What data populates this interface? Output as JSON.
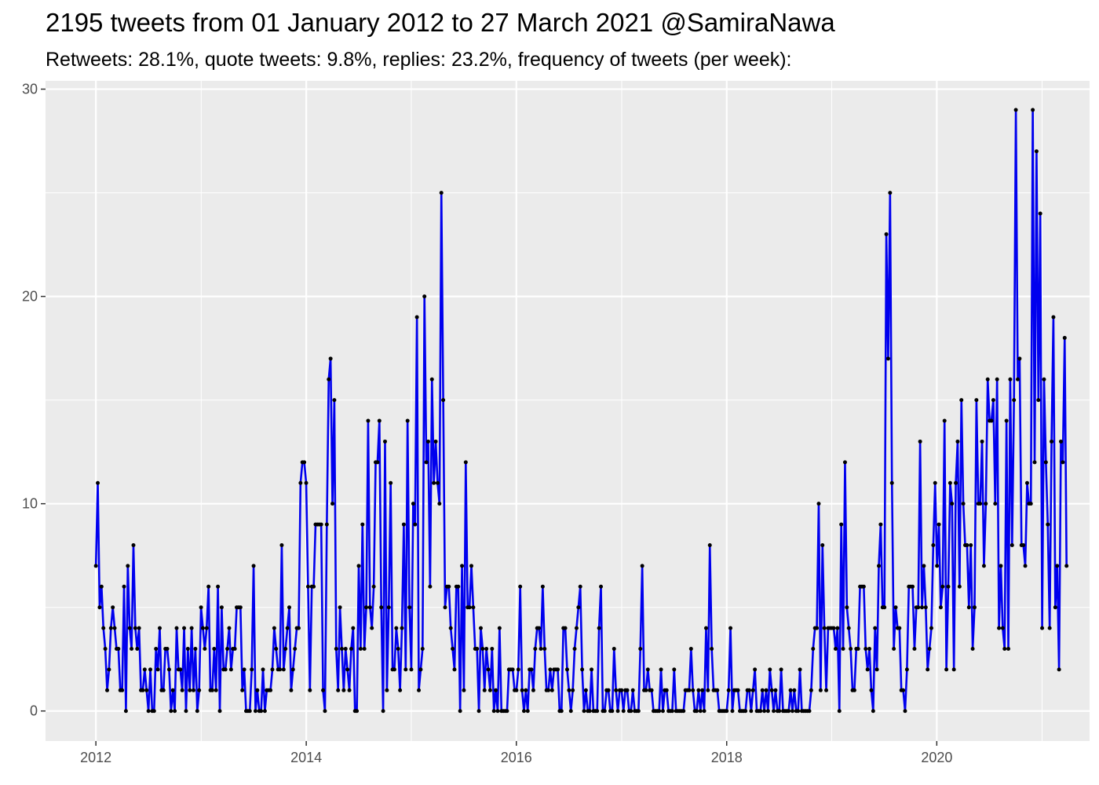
{
  "chart_data": {
    "type": "line",
    "title": "2195 tweets from 01 January 2012 to 27 March 2021 @SamiraNawa",
    "subtitle": "Retweets: 28.1%, quote tweets: 9.8%, replies: 23.2%, frequency of tweets (per week):",
    "xlabel": "",
    "ylabel": "",
    "x_start": "2012-01-01",
    "x_end": "2021-03-27",
    "xlim": [
      "2011-07-10",
      "2021-06-15"
    ],
    "ylim": [
      -1.45,
      30.4
    ],
    "x_ticks": [
      "2012",
      "2014",
      "2016",
      "2018",
      "2020"
    ],
    "y_ticks": [
      0,
      10,
      20,
      30
    ],
    "grid": true,
    "legend": "none",
    "colors": {
      "line": "#0000ee",
      "point": "#000000",
      "panel": "#ebebeb",
      "grid": "#ffffff"
    },
    "series": [
      {
        "values": [
          7,
          11,
          5,
          6,
          4,
          3,
          1,
          2,
          4,
          5,
          4,
          3,
          3,
          1,
          1,
          6,
          0,
          7,
          4,
          3,
          8,
          4,
          3,
          4,
          1,
          1,
          2,
          1,
          0,
          2,
          0,
          0,
          3,
          2,
          4,
          1,
          1,
          3,
          3,
          2,
          0,
          1,
          0,
          4,
          2,
          2,
          1,
          4,
          0,
          3,
          1,
          4,
          1,
          3,
          0,
          1,
          5,
          4,
          3,
          4,
          6,
          1,
          1,
          3,
          1,
          6,
          0,
          5,
          2,
          2,
          3,
          4,
          2,
          3,
          3,
          5,
          5,
          5,
          1,
          2,
          0,
          0,
          0,
          2,
          7,
          0,
          1,
          0,
          0,
          2,
          0,
          1,
          1,
          1,
          2,
          4,
          3,
          2,
          2,
          8,
          2,
          3,
          4,
          5,
          1,
          2,
          3,
          4,
          4,
          11,
          12,
          12,
          11,
          6,
          1,
          6,
          6,
          9,
          9,
          9,
          9,
          1,
          0,
          9,
          16,
          17,
          10,
          15,
          3,
          1,
          5,
          3,
          1,
          3,
          2,
          1,
          3,
          4,
          0,
          0,
          7,
          3,
          9,
          3,
          5,
          14,
          5,
          4,
          6,
          12,
          12,
          14,
          5,
          0,
          13,
          1,
          5,
          11,
          2,
          2,
          4,
          3,
          1,
          4,
          9,
          2,
          14,
          5,
          2,
          10,
          9,
          19,
          1,
          2,
          3,
          20,
          12,
          13,
          6,
          16,
          11,
          13,
          11,
          10,
          25,
          15,
          5,
          6,
          6,
          4,
          3,
          2,
          6,
          6,
          0,
          7,
          1,
          12,
          5,
          5,
          7,
          5,
          3,
          3,
          0,
          4,
          3,
          1,
          3,
          2,
          1,
          3,
          0,
          1,
          0,
          4,
          0,
          0,
          0,
          0,
          2,
          2,
          2,
          1,
          1,
          2,
          6,
          1,
          0,
          1,
          0,
          2,
          2,
          1,
          3,
          4,
          4,
          3,
          6,
          3,
          1,
          1,
          2,
          1,
          2,
          2,
          2,
          0,
          0,
          4,
          4,
          2,
          1,
          0,
          1,
          3,
          4,
          5,
          6,
          2,
          0,
          1,
          0,
          0,
          2,
          0,
          0,
          0,
          4,
          6,
          0,
          0,
          1,
          1,
          0,
          0,
          3,
          1,
          0,
          1,
          1,
          0,
          1,
          1,
          0,
          0,
          1,
          0,
          0,
          0,
          3,
          7,
          1,
          1,
          2,
          1,
          1,
          0,
          0,
          0,
          0,
          2,
          0,
          1,
          1,
          0,
          0,
          0,
          2,
          0,
          0,
          0,
          0,
          0,
          1,
          1,
          1,
          3,
          1,
          0,
          0,
          1,
          0,
          1,
          0,
          4,
          1,
          8,
          3,
          1,
          1,
          1,
          0,
          0,
          0,
          0,
          0,
          1,
          4,
          0,
          1,
          1,
          1,
          0,
          0,
          0,
          0,
          1,
          1,
          0,
          1,
          2,
          0,
          0,
          0,
          1,
          0,
          1,
          0,
          2,
          1,
          0,
          1,
          0,
          0,
          2,
          0,
          0,
          0,
          0,
          1,
          0,
          1,
          0,
          0,
          2,
          0,
          0,
          0,
          0,
          0,
          1,
          3,
          4,
          4,
          10,
          1,
          8,
          4,
          1,
          4,
          4,
          4,
          4,
          3,
          4,
          0,
          9,
          3,
          12,
          5,
          4,
          3,
          1,
          1,
          3,
          3,
          6,
          6,
          6,
          3,
          2,
          3,
          1,
          0,
          4,
          2,
          7,
          9,
          5,
          5,
          23,
          17,
          25,
          11,
          3,
          5,
          4,
          4,
          1,
          1,
          0,
          2,
          6,
          6,
          6,
          3,
          5,
          5,
          13,
          5,
          7,
          5,
          2,
          3,
          4,
          8,
          11,
          7,
          9,
          5,
          6,
          14,
          2,
          6,
          11,
          10,
          2,
          11,
          13,
          6,
          15,
          10,
          8,
          8,
          5,
          8,
          3,
          5,
          15,
          10,
          10,
          13,
          7,
          10,
          16,
          14,
          14,
          15,
          10,
          16,
          4,
          7,
          4,
          3,
          14,
          3,
          16,
          8,
          15,
          29,
          16,
          17,
          8,
          8,
          7,
          11,
          10,
          10,
          29,
          12,
          27,
          15,
          24,
          4,
          16,
          12,
          9,
          4,
          13,
          19,
          5,
          7,
          2,
          13,
          12,
          18,
          7
        ]
      }
    ]
  }
}
